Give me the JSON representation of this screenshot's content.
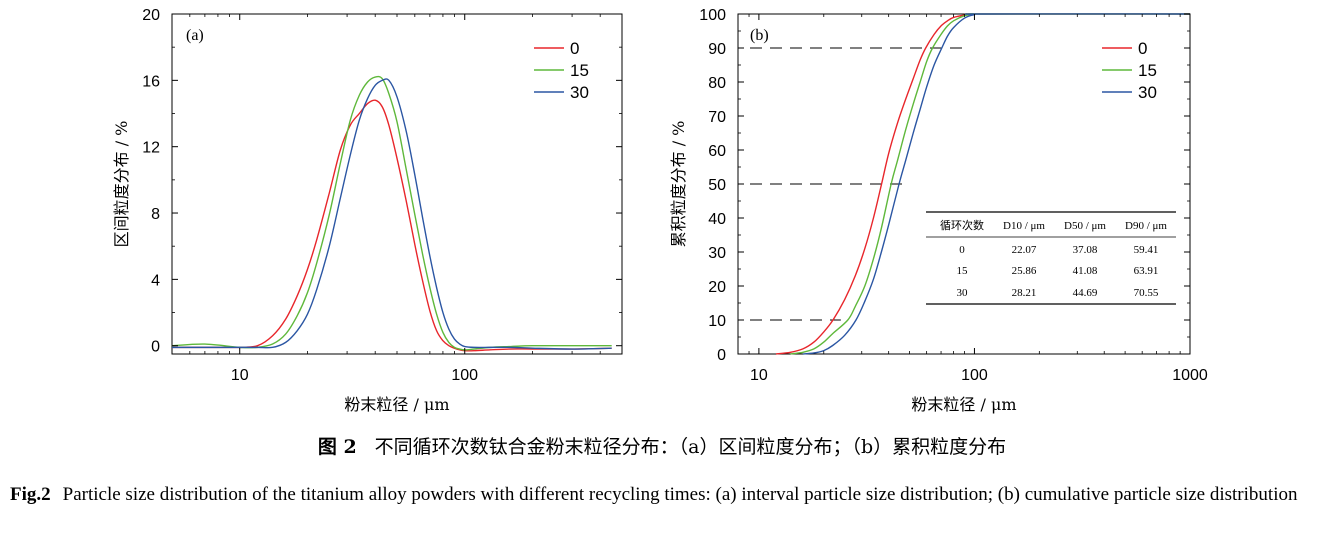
{
  "caption": {
    "cn_label": "图 2",
    "cn_text": "不同循环次数钛合金粉末粒径分布：（a）区间粒度分布；（b）累积粒度分布",
    "en_label": "Fig.2",
    "en_text": "Particle size distribution of the titanium alloy powders with different recycling times: (a) interval particle size distribution; (b) cumulative particle size distribution"
  },
  "colors": {
    "s0": "#e8262b",
    "s15": "#5fb83b",
    "s30": "#2b56a3"
  },
  "chart_data": [
    {
      "type": "line",
      "panel": "(a)",
      "xlabel": "粉末粒径 / μm",
      "ylabel": "区间粒度分布 / %",
      "xscale": "log",
      "xlim": [
        5,
        500
      ],
      "ylim": [
        -0.5,
        20
      ],
      "xticks": [
        10,
        100
      ],
      "xtick_labels": [
        "10",
        "100"
      ],
      "yticks": [
        0,
        4,
        8,
        12,
        16,
        20
      ],
      "ytick_labels": [
        "0",
        "4",
        "8",
        "12",
        "16",
        "20"
      ],
      "legend": "top-right",
      "series": [
        {
          "name": "0",
          "color": "#e8262b",
          "x": [
            5,
            8,
            10,
            12,
            14,
            16,
            18,
            20,
            22,
            25,
            28,
            31,
            34,
            37,
            40,
            43,
            46,
            50,
            55,
            60,
            65,
            70,
            75,
            80,
            85,
            90,
            95,
            100,
            110,
            130,
            160,
            200,
            300,
            450
          ],
          "y": [
            -0.1,
            -0.1,
            -0.1,
            0.0,
            0.6,
            1.6,
            3.0,
            4.6,
            6.4,
            9.2,
            11.8,
            13.3,
            14.0,
            14.6,
            14.8,
            14.4,
            13.3,
            11.3,
            8.7,
            6.1,
            3.9,
            2.1,
            0.9,
            0.3,
            0.0,
            -0.15,
            -0.25,
            -0.3,
            -0.3,
            -0.25,
            -0.2,
            -0.2,
            -0.2,
            -0.15
          ]
        },
        {
          "name": "15",
          "color": "#5fb83b",
          "x": [
            5,
            7,
            10,
            12,
            14,
            16,
            18,
            20,
            22,
            25,
            28,
            31,
            34,
            37,
            40,
            43,
            46,
            50,
            55,
            60,
            65,
            70,
            75,
            80,
            85,
            90,
            95,
            100,
            110,
            130,
            160,
            200,
            300,
            450
          ],
          "y": [
            0.0,
            0.1,
            -0.1,
            -0.1,
            0.1,
            0.7,
            1.8,
            3.2,
            5.0,
            7.9,
            11.0,
            13.6,
            15.1,
            15.9,
            16.2,
            16.1,
            15.2,
            13.5,
            10.6,
            7.9,
            5.5,
            3.5,
            1.9,
            0.8,
            0.2,
            -0.1,
            -0.2,
            -0.25,
            -0.2,
            -0.1,
            -0.05,
            0.0,
            0.0,
            0.0
          ]
        },
        {
          "name": "30",
          "color": "#2b56a3",
          "x": [
            5,
            8,
            10,
            12,
            14,
            16,
            18,
            20,
            22,
            25,
            28,
            31,
            34,
            37,
            40,
            43,
            46,
            50,
            55,
            60,
            65,
            70,
            75,
            80,
            85,
            90,
            95,
            100,
            110,
            130,
            160,
            200,
            300,
            450
          ],
          "y": [
            -0.1,
            -0.1,
            -0.1,
            -0.1,
            -0.1,
            0.2,
            0.9,
            1.9,
            3.4,
            6.0,
            8.9,
            11.5,
            13.6,
            14.9,
            15.7,
            16.0,
            16.0,
            15.0,
            12.9,
            10.3,
            7.7,
            5.4,
            3.5,
            2.0,
            1.0,
            0.4,
            0.1,
            -0.05,
            -0.1,
            -0.1,
            -0.1,
            -0.15,
            -0.2,
            -0.15
          ]
        }
      ]
    },
    {
      "type": "line",
      "panel": "(b)",
      "xlabel": "粉末粒径 / μm",
      "ylabel": "累积粒度分布 / %",
      "xscale": "log",
      "xlim": [
        8,
        1000
      ],
      "ylim": [
        0,
        100
      ],
      "xticks": [
        10,
        100,
        1000
      ],
      "xtick_labels": [
        "10",
        "100",
        "1000"
      ],
      "yticks": [
        0,
        10,
        20,
        30,
        40,
        50,
        60,
        70,
        80,
        90,
        100
      ],
      "ytick_labels": [
        "0",
        "10",
        "20",
        "30",
        "40",
        "50",
        "60",
        "70",
        "80",
        "90",
        "100"
      ],
      "legend": "top-right",
      "reference_lines": [
        {
          "y": 10,
          "x_end": 24
        },
        {
          "y": 50,
          "x_end": 50
        },
        {
          "y": 90,
          "x_end": 90
        }
      ],
      "series": [
        {
          "name": "0",
          "color": "#e8262b",
          "x": [
            12,
            14,
            16,
            18,
            20,
            22.07,
            25,
            28,
            31,
            34,
            37.08,
            40,
            44,
            48,
            52,
            56,
            59.41,
            65,
            70,
            75,
            80,
            90,
            100,
            110,
            1000
          ],
          "y": [
            0,
            0.5,
            1.5,
            3.5,
            6.5,
            10,
            16,
            23,
            31,
            40,
            50,
            59,
            68,
            75,
            81,
            86.5,
            90,
            94,
            96.5,
            98,
            99,
            99.7,
            100,
            100,
            100
          ]
        },
        {
          "name": "15",
          "color": "#5fb83b",
          "x": [
            14,
            16,
            18,
            20,
            22,
            25.86,
            28,
            31,
            34,
            37,
            41.08,
            44,
            48,
            52,
            56,
            60,
            63.91,
            70,
            75,
            80,
            90,
            100,
            110,
            1000
          ],
          "y": [
            0,
            0.5,
            1.5,
            3.5,
            6,
            10,
            14,
            20,
            28,
            37,
            50,
            57,
            66,
            73.5,
            80,
            86,
            90,
            94,
            96.5,
            98,
            99.5,
            100,
            100,
            100
          ]
        },
        {
          "name": "30",
          "color": "#2b56a3",
          "x": [
            16,
            18,
            20,
            22,
            25,
            28.21,
            31,
            34,
            37,
            40,
            44.69,
            48,
            52,
            56,
            60,
            65,
            70.55,
            75,
            80,
            90,
            100,
            110,
            1000
          ],
          "y": [
            0,
            0.3,
            1,
            2.5,
            5.5,
            10,
            15.5,
            22,
            30,
            38,
            50,
            57,
            65,
            72,
            78.5,
            85,
            90,
            93.5,
            96,
            98.8,
            99.8,
            100,
            100
          ]
        }
      ],
      "inset_table": {
        "headers": [
          "循环次数",
          "D10 / μm",
          "D50 / μm",
          "D90 / μm"
        ],
        "rows": [
          [
            "0",
            "22.07",
            "37.08",
            "59.41"
          ],
          [
            "15",
            "25.86",
            "41.08",
            "63.91"
          ],
          [
            "30",
            "28.21",
            "44.69",
            "70.55"
          ]
        ]
      }
    }
  ]
}
